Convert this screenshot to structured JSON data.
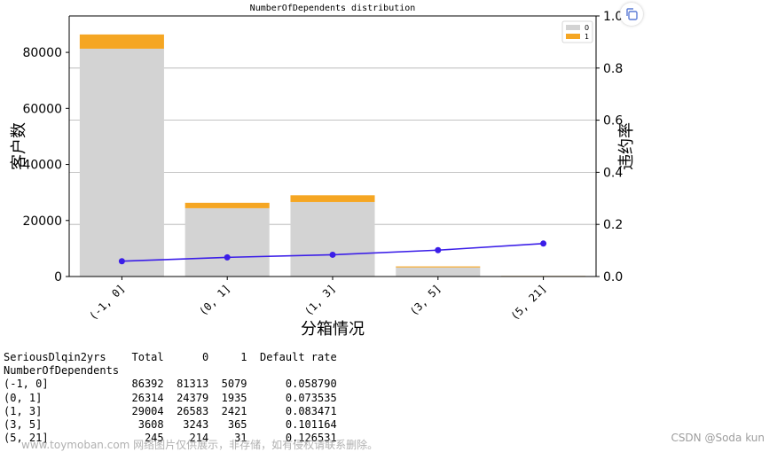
{
  "chart_data": {
    "type": "bar",
    "title": "NumberOfDependents distribution",
    "xlabel": "分箱情况",
    "ylabel": "客户数",
    "y2label": "违约率",
    "categories": [
      "(-1, 0]",
      "(0, 1]",
      "(1, 3]",
      "(3, 5]",
      "(5, 21]"
    ],
    "stacked": true,
    "series": [
      {
        "name": "0",
        "values": [
          81313,
          24379,
          26583,
          3243,
          214
        ],
        "color": "#d3d3d3"
      },
      {
        "name": "1",
        "values": [
          5079,
          1935,
          2421,
          365,
          31
        ],
        "color": "#f5a623"
      }
    ],
    "line_series": {
      "values": [
        0.05879,
        0.073535,
        0.083471,
        0.101164,
        0.126531
      ],
      "color": "#3b1ee8",
      "axis": "right"
    },
    "ylim": [
      0,
      93000
    ],
    "y2lim": [
      0,
      1.0
    ],
    "yticks": [
      "0",
      "20000",
      "40000",
      "60000",
      "80000"
    ],
    "y2ticks": [
      "0.0",
      "0.2",
      "0.4",
      "0.6",
      "0.8",
      "1.0"
    ],
    "grid": "right-axis horizontal",
    "legend_position": "top-right"
  },
  "table": {
    "text": "SeriousDlqin2yrs    Total      0     1  Default rate\nNumberOfDependents\n(-1, 0]             86392  81313  5079      0.058790\n(0, 1]              26314  24379  1935      0.073535\n(1, 3]              29004  26583  2421      0.083471\n(3, 5]               3608   3243   365      0.101164\n(5, 21]               245    214    31      0.126531"
  },
  "watermarks": {
    "left": "www.toymoban.com 网络图片仅供展示，非存储，如有侵权请联系删除。",
    "right": "CSDN @Soda kun"
  },
  "icons": {
    "copy": "copy-icon"
  }
}
